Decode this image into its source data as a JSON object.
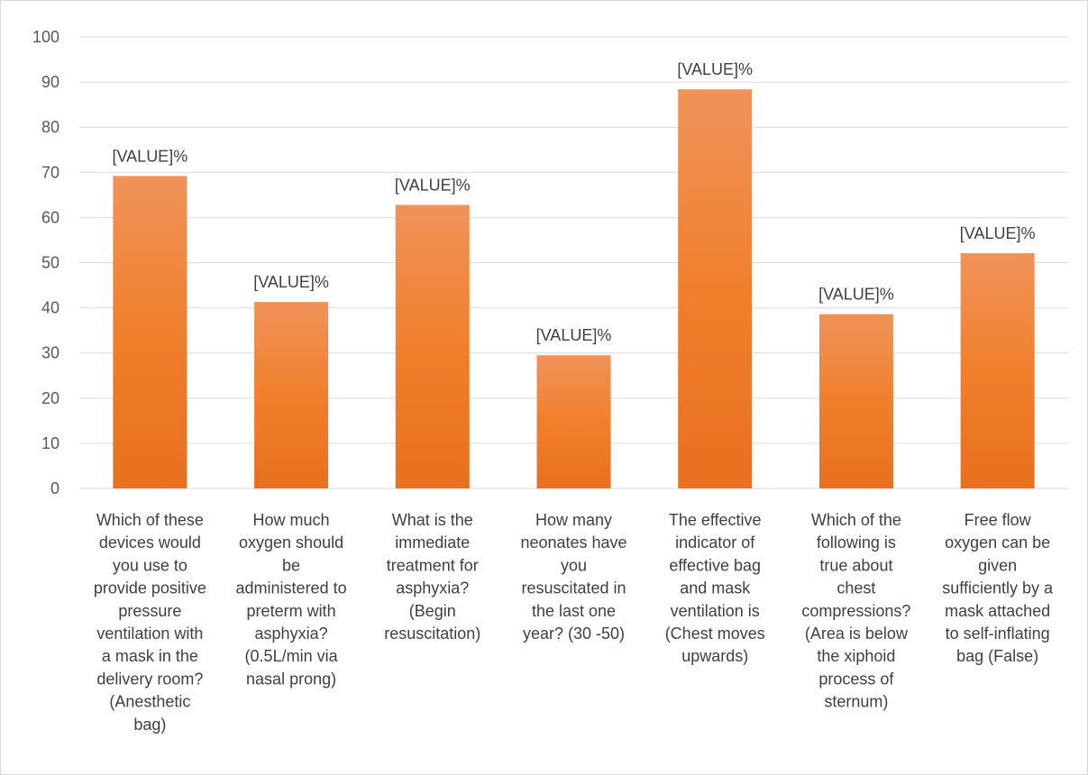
{
  "chart_data": {
    "type": "bar",
    "title": "",
    "xlabel": "",
    "ylabel": "",
    "ylim": [
      0,
      100
    ],
    "yticks": [
      0,
      10,
      20,
      30,
      40,
      50,
      60,
      70,
      80,
      90,
      100
    ],
    "grid": true,
    "legend": "none",
    "bar_color": "#ed7d31",
    "data_label_text": "[VALUE]%",
    "categories": [
      [
        "Which of these",
        "devices would",
        "you use to",
        "provide positive",
        "pressure",
        "ventilation with",
        "a mask in the",
        "delivery room?",
        "(Anesthetic",
        "bag)"
      ],
      [
        "How much",
        "oxygen should",
        "be",
        "administered to",
        "preterm with",
        "asphyxia?",
        "(0.5L/min via",
        "nasal prong)"
      ],
      [
        "What is the",
        "immediate",
        "treatment for",
        "asphyxia?",
        "(Begin",
        "resuscitation)"
      ],
      [
        "How many",
        "neonates have",
        "you",
        "resuscitated in",
        "the last one",
        "year? (30 -50)"
      ],
      [
        "The effective",
        "indicator of",
        "effective bag",
        "and mask",
        "ventilation is",
        "(Chest moves",
        "upwards)"
      ],
      [
        "Which of the",
        "following is",
        "true about",
        "chest",
        "compressions?",
        "(Area is below",
        "the xiphoid",
        "process of",
        "sternum)"
      ],
      [
        "Free flow",
        "oxygen can be",
        "given",
        "sufficiently by a",
        "mask attached",
        "to self-inflating",
        "bag (False)"
      ]
    ],
    "values": [
      69.2,
      41.3,
      62.8,
      29.5,
      88.4,
      38.6,
      52.1
    ]
  }
}
